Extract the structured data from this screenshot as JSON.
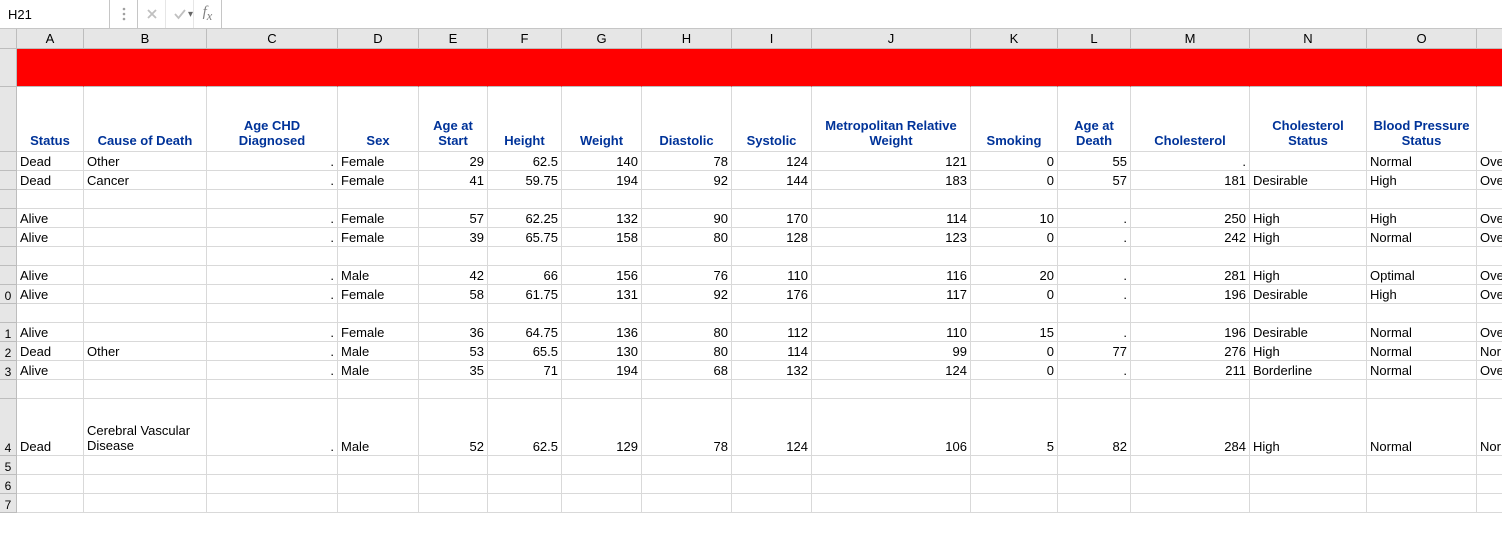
{
  "colors": {
    "header_bg": "#e6e6e6",
    "grid_line": "#d9d9d9",
    "header_line": "#bdbdbd",
    "red_row": "#ff0000",
    "header_text": "#003399",
    "cell_text": "#000000",
    "disabled_icon": "#a0a0a0"
  },
  "formula_bar": {
    "cell_ref": "H21",
    "formula": "",
    "placeholder": ""
  },
  "columns": [
    {
      "letter": "A",
      "width": 67,
      "header": "Status"
    },
    {
      "letter": "B",
      "width": 123,
      "header": "Cause of Death"
    },
    {
      "letter": "C",
      "width": 131,
      "header": "Age CHD Diagnosed"
    },
    {
      "letter": "D",
      "width": 81,
      "header": "Sex"
    },
    {
      "letter": "E",
      "width": 69,
      "header": "Age at Start"
    },
    {
      "letter": "F",
      "width": 74,
      "header": "Height"
    },
    {
      "letter": "G",
      "width": 80,
      "header": "Weight"
    },
    {
      "letter": "H",
      "width": 90,
      "header": "Diastolic"
    },
    {
      "letter": "I",
      "width": 80,
      "header": "Systolic"
    },
    {
      "letter": "J",
      "width": 159,
      "header": "Metropolitan Relative Weight"
    },
    {
      "letter": "K",
      "width": 87,
      "header": "Smoking"
    },
    {
      "letter": "L",
      "width": 73,
      "header": "Age at Death"
    },
    {
      "letter": "M",
      "width": 119,
      "header": "Cholesterol"
    },
    {
      "letter": "N",
      "width": 117,
      "header": "Cholesterol Status"
    },
    {
      "letter": "O",
      "width": 110,
      "header": "Blood Pressure Status"
    },
    {
      "letter": "P",
      "width": 60,
      "header": ""
    }
  ],
  "red_row_label": "",
  "header_row_label": "",
  "row_labels": [
    "",
    "",
    "",
    "",
    "",
    "",
    "",
    "0",
    "",
    "1",
    "2",
    "3",
    "",
    "4",
    "5",
    "6",
    "7"
  ],
  "row_heights": {
    "red": 38,
    "header": 65,
    "normal": 19,
    "small_gap": 19,
    "cvd": 57
  },
  "numeric_cols": [
    "C",
    "E",
    "F",
    "G",
    "H",
    "I",
    "J",
    "K",
    "L",
    "M"
  ],
  "text_cols": [
    "A",
    "B",
    "D",
    "N",
    "O",
    "P"
  ],
  "dot": ".",
  "rows": [
    {
      "h": 19,
      "cells": {
        "A": "Dead",
        "B": "Other",
        "C": ".",
        "D": "Female",
        "E": "29",
        "F": "62.5",
        "G": "140",
        "H": "78",
        "I": "124",
        "J": "121",
        "K": "0",
        "L": "55",
        "M": ".",
        "N": "",
        "O": "Normal",
        "P": "Ove"
      }
    },
    {
      "h": 19,
      "cells": {
        "A": "Dead",
        "B": "Cancer",
        "C": ".",
        "D": "Female",
        "E": "41",
        "F": "59.75",
        "G": "194",
        "H": "92",
        "I": "144",
        "J": "183",
        "K": "0",
        "L": "57",
        "M": "181",
        "N": "Desirable",
        "O": "High",
        "P": "Ove"
      }
    },
    {
      "h": 19,
      "cells": {}
    },
    {
      "h": 19,
      "cells": {
        "A": "Alive",
        "B": "",
        "C": ".",
        "D": "Female",
        "E": "57",
        "F": "62.25",
        "G": "132",
        "H": "90",
        "I": "170",
        "J": "114",
        "K": "10",
        "L": ".",
        "M": "250",
        "N": "High",
        "O": "High",
        "P": "Ove"
      }
    },
    {
      "h": 19,
      "cells": {
        "A": "Alive",
        "B": "",
        "C": ".",
        "D": "Female",
        "E": "39",
        "F": "65.75",
        "G": "158",
        "H": "80",
        "I": "128",
        "J": "123",
        "K": "0",
        "L": ".",
        "M": "242",
        "N": "High",
        "O": "Normal",
        "P": "Ove"
      }
    },
    {
      "h": 19,
      "cells": {}
    },
    {
      "h": 19,
      "cells": {
        "A": "Alive",
        "B": "",
        "C": ".",
        "D": "Male",
        "E": "42",
        "F": "66",
        "G": "156",
        "H": "76",
        "I": "110",
        "J": "116",
        "K": "20",
        "L": ".",
        "M": "281",
        "N": "High",
        "O": "Optimal",
        "P": "Ove"
      }
    },
    {
      "h": 19,
      "cells": {
        "A": "Alive",
        "B": "",
        "C": ".",
        "D": "Female",
        "E": "58",
        "F": "61.75",
        "G": "131",
        "H": "92",
        "I": "176",
        "J": "117",
        "K": "0",
        "L": ".",
        "M": "196",
        "N": "Desirable",
        "O": "High",
        "P": "Ove"
      }
    },
    {
      "h": 19,
      "cells": {}
    },
    {
      "h": 19,
      "cells": {
        "A": "Alive",
        "B": "",
        "C": ".",
        "D": "Female",
        "E": "36",
        "F": "64.75",
        "G": "136",
        "H": "80",
        "I": "112",
        "J": "110",
        "K": "15",
        "L": ".",
        "M": "196",
        "N": "Desirable",
        "O": "Normal",
        "P": "Ove"
      }
    },
    {
      "h": 19,
      "cells": {
        "A": "Dead",
        "B": "Other",
        "C": ".",
        "D": "Male",
        "E": "53",
        "F": "65.5",
        "G": "130",
        "H": "80",
        "I": "114",
        "J": "99",
        "K": "0",
        "L": "77",
        "M": "276",
        "N": "High",
        "O": "Normal",
        "P": "Nor"
      }
    },
    {
      "h": 19,
      "cells": {
        "A": "Alive",
        "B": "",
        "C": ".",
        "D": "Male",
        "E": "35",
        "F": "71",
        "G": "194",
        "H": "68",
        "I": "132",
        "J": "124",
        "K": "0",
        "L": ".",
        "M": "211",
        "N": "Borderline",
        "O": "Normal",
        "P": "Ove"
      }
    },
    {
      "h": 19,
      "cells": {}
    },
    {
      "h": 57,
      "multi": true,
      "cells": {
        "A": "Dead",
        "B": "Cerebral Vascular Disease",
        "C": ".",
        "D": "Male",
        "E": "52",
        "F": "62.5",
        "G": "129",
        "H": "78",
        "I": "124",
        "J": "106",
        "K": "5",
        "L": "82",
        "M": "284",
        "N": "High",
        "O": "Normal",
        "P": "Nor"
      }
    },
    {
      "h": 19,
      "cells": {}
    },
    {
      "h": 19,
      "cells": {}
    },
    {
      "h": 19,
      "cells": {}
    }
  ]
}
